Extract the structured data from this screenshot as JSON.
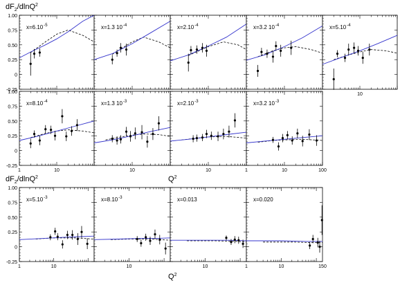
{
  "figure": {
    "ylabel_main": "dF₂/dlnQ²",
    "ylabel_main_parts": [
      "dF",
      "2",
      "/dlnQ",
      "2"
    ],
    "xlabel": "Q²",
    "xlabel_parts": [
      "Q",
      "2"
    ]
  },
  "colors": {
    "theory_solid": "#3333cc",
    "theory_dashed": "#000000",
    "points": "#000000",
    "frame": "#000000"
  },
  "chart_data": [
    {
      "type": "scatter",
      "x_label": "x=6.10",
      "x_exp": "-5",
      "y_ticks": [
        "-0.25",
        "0",
        "0.25",
        "0.50",
        "0.75",
        "1.00"
      ],
      "ylim": [
        -0.25,
        1.0
      ],
      "x_ticks": [],
      "xlim": [
        1,
        100
      ],
      "xscale": "log",
      "points": [
        {
          "x": 2,
          "y": 0.18,
          "err": 0.2
        },
        {
          "x": 2.5,
          "y": 0.35,
          "err": 0.08
        },
        {
          "x": 3.5,
          "y": 0.37,
          "err": 0.07
        }
      ],
      "solid": [
        [
          1,
          0.28
        ],
        [
          2,
          0.38
        ],
        [
          5,
          0.5
        ],
        [
          10,
          0.6
        ],
        [
          20,
          0.72
        ],
        [
          50,
          0.9
        ],
        [
          100,
          1.0
        ]
      ],
      "dashed": [
        [
          2,
          0.37
        ],
        [
          5,
          0.55
        ],
        [
          10,
          0.68
        ],
        [
          20,
          0.75
        ],
        [
          50,
          0.66
        ],
        [
          100,
          0.55
        ]
      ]
    },
    {
      "type": "scatter",
      "x_label": "x=1.3 10",
      "x_exp": "-4",
      "y_ticks": [],
      "ylim": [
        -0.25,
        1.0
      ],
      "x_ticks": [],
      "xlim": [
        1,
        100
      ],
      "xscale": "log",
      "points": [
        {
          "x": 3,
          "y": 0.25,
          "err": 0.08
        },
        {
          "x": 4,
          "y": 0.36,
          "err": 0.06
        },
        {
          "x": 5,
          "y": 0.45,
          "err": 0.08
        },
        {
          "x": 7,
          "y": 0.42,
          "err": 0.1
        }
      ],
      "solid": [
        [
          1,
          0.25
        ],
        [
          3,
          0.35
        ],
        [
          10,
          0.52
        ],
        [
          30,
          0.7
        ],
        [
          100,
          0.9
        ]
      ],
      "dashed": [
        [
          3,
          0.34
        ],
        [
          10,
          0.55
        ],
        [
          20,
          0.63
        ],
        [
          50,
          0.55
        ],
        [
          100,
          0.45
        ]
      ]
    },
    {
      "type": "scatter",
      "x_label": "x=2.10",
      "x_exp": "-4",
      "y_ticks": [],
      "ylim": [
        -0.25,
        1.0
      ],
      "x_ticks": [],
      "xlim": [
        1,
        100
      ],
      "xscale": "log",
      "points": [
        {
          "x": 3,
          "y": 0.2,
          "err": 0.15
        },
        {
          "x": 3.5,
          "y": 0.41,
          "err": 0.07
        },
        {
          "x": 5,
          "y": 0.42,
          "err": 0.07
        },
        {
          "x": 7,
          "y": 0.45,
          "err": 0.08
        },
        {
          "x": 9,
          "y": 0.4,
          "err": 0.1
        }
      ],
      "solid": [
        [
          1,
          0.23
        ],
        [
          3,
          0.33
        ],
        [
          10,
          0.48
        ],
        [
          30,
          0.63
        ],
        [
          100,
          0.85
        ]
      ],
      "dashed": [
        [
          3,
          0.32
        ],
        [
          10,
          0.47
        ],
        [
          25,
          0.55
        ],
        [
          60,
          0.5
        ],
        [
          100,
          0.42
        ]
      ]
    },
    {
      "type": "scatter",
      "x_label": "x=3.2 10",
      "x_exp": "-4",
      "y_ticks": [],
      "ylim": [
        -0.25,
        1.0
      ],
      "x_ticks": [],
      "xlim": [
        1,
        100
      ],
      "xscale": "log",
      "points": [
        {
          "x": 2,
          "y": 0.06,
          "err": 0.1
        },
        {
          "x": 2.5,
          "y": 0.38,
          "err": 0.07
        },
        {
          "x": 3.5,
          "y": 0.35,
          "err": 0.07
        },
        {
          "x": 5,
          "y": 0.3,
          "err": 0.1
        },
        {
          "x": 6,
          "y": 0.48,
          "err": 0.08
        },
        {
          "x": 8,
          "y": 0.4,
          "err": 0.1
        },
        {
          "x": 15,
          "y": 0.45,
          "err": 0.12
        }
      ],
      "solid": [
        [
          1,
          0.24
        ],
        [
          3,
          0.33
        ],
        [
          10,
          0.47
        ],
        [
          30,
          0.62
        ],
        [
          100,
          0.82
        ]
      ],
      "dashed": [
        [
          2,
          0.3
        ],
        [
          5,
          0.4
        ],
        [
          10,
          0.45
        ],
        [
          20,
          0.47
        ],
        [
          50,
          0.42
        ],
        [
          100,
          0.36
        ]
      ]
    },
    {
      "type": "scatter",
      "x_label": "x=5.10",
      "x_exp": "-4",
      "y_ticks": [],
      "ylim": [
        -0.25,
        1.0
      ],
      "x_ticks": [
        "10"
      ],
      "xlim": [
        1,
        100
      ],
      "xscale": "log",
      "points": [
        {
          "x": 2,
          "y": -0.08,
          "err": 0.18
        },
        {
          "x": 2.5,
          "y": 0.35,
          "err": 0.06
        },
        {
          "x": 4,
          "y": 0.28,
          "err": 0.07
        },
        {
          "x": 5,
          "y": 0.42,
          "err": 0.1
        },
        {
          "x": 7,
          "y": 0.45,
          "err": 0.09
        },
        {
          "x": 9,
          "y": 0.4,
          "err": 0.08
        },
        {
          "x": 12,
          "y": 0.28,
          "err": 0.1
        },
        {
          "x": 18,
          "y": 0.42,
          "err": 0.1
        }
      ],
      "solid": [
        [
          1,
          0.17
        ],
        [
          3,
          0.28
        ],
        [
          10,
          0.4
        ],
        [
          30,
          0.52
        ],
        [
          100,
          0.66
        ]
      ],
      "dashed": [
        [
          2,
          0.25
        ],
        [
          5,
          0.33
        ],
        [
          10,
          0.38
        ],
        [
          20,
          0.42
        ],
        [
          50,
          0.4
        ],
        [
          100,
          0.36
        ]
      ]
    },
    {
      "type": "scatter",
      "x_label": "x=8.10",
      "x_exp": "-4",
      "y_ticks": [
        "-0.25",
        "0",
        "0.25",
        "0.50",
        "0.75",
        "1.00"
      ],
      "ylim": [
        -0.25,
        1.0
      ],
      "x_ticks": [
        "1",
        "10"
      ],
      "xlim": [
        1,
        100
      ],
      "xscale": "log",
      "points": [
        {
          "x": 2,
          "y": 0.12,
          "err": 0.08
        },
        {
          "x": 2.5,
          "y": 0.28,
          "err": 0.06
        },
        {
          "x": 3.5,
          "y": 0.17,
          "err": 0.08
        },
        {
          "x": 5,
          "y": 0.36,
          "err": 0.07
        },
        {
          "x": 7,
          "y": 0.35,
          "err": 0.07
        },
        {
          "x": 9,
          "y": 0.25,
          "err": 0.08
        },
        {
          "x": 14,
          "y": 0.58,
          "err": 0.12
        },
        {
          "x": 18,
          "y": 0.24,
          "err": 0.08
        },
        {
          "x": 25,
          "y": 0.33,
          "err": 0.08
        },
        {
          "x": 35,
          "y": 0.43,
          "err": 0.1
        }
      ],
      "solid": [
        [
          1,
          0.17
        ],
        [
          3,
          0.24
        ],
        [
          10,
          0.33
        ],
        [
          30,
          0.41
        ],
        [
          100,
          0.5
        ]
      ],
      "dashed": [
        [
          2,
          0.22
        ],
        [
          5,
          0.29
        ],
        [
          10,
          0.33
        ],
        [
          20,
          0.35
        ],
        [
          50,
          0.33
        ],
        [
          100,
          0.3
        ]
      ]
    },
    {
      "type": "scatter",
      "x_label": "x=1.3 10",
      "x_exp": "-3",
      "y_ticks": [],
      "ylim": [
        -0.25,
        1.0
      ],
      "x_ticks": [
        "10"
      ],
      "xlim": [
        1,
        100
      ],
      "xscale": "log",
      "points": [
        {
          "x": 3,
          "y": 0.2,
          "err": 0.06
        },
        {
          "x": 4,
          "y": 0.17,
          "err": 0.07
        },
        {
          "x": 5,
          "y": 0.19,
          "err": 0.07
        },
        {
          "x": 7,
          "y": 0.32,
          "err": 0.08
        },
        {
          "x": 9,
          "y": 0.24,
          "err": 0.09
        },
        {
          "x": 12,
          "y": 0.29,
          "err": 0.1
        },
        {
          "x": 18,
          "y": 0.31,
          "err": 0.12
        },
        {
          "x": 25,
          "y": 0.15,
          "err": 0.1
        },
        {
          "x": 35,
          "y": 0.28,
          "err": 0.1
        },
        {
          "x": 50,
          "y": 0.46,
          "err": 0.12
        }
      ],
      "solid": [
        [
          1,
          0.13
        ],
        [
          3,
          0.18
        ],
        [
          10,
          0.25
        ],
        [
          30,
          0.32
        ],
        [
          100,
          0.39
        ]
      ],
      "dashed": [
        [
          2,
          0.18
        ],
        [
          5,
          0.23
        ],
        [
          10,
          0.26
        ],
        [
          20,
          0.28
        ],
        [
          50,
          0.27
        ],
        [
          100,
          0.24
        ]
      ]
    },
    {
      "type": "scatter",
      "x_label": "x=2.10",
      "x_exp": "-3",
      "y_ticks": [],
      "ylim": [
        -0.25,
        1.0
      ],
      "x_ticks": [
        "10"
      ],
      "xlim": [
        1,
        100
      ],
      "xscale": "log",
      "points": [
        {
          "x": 4,
          "y": 0.2,
          "err": 0.06
        },
        {
          "x": 5,
          "y": 0.21,
          "err": 0.06
        },
        {
          "x": 7,
          "y": 0.22,
          "err": 0.06
        },
        {
          "x": 9,
          "y": 0.28,
          "err": 0.07
        },
        {
          "x": 12,
          "y": 0.25,
          "err": 0.07
        },
        {
          "x": 18,
          "y": 0.24,
          "err": 0.08
        },
        {
          "x": 25,
          "y": 0.28,
          "err": 0.09
        },
        {
          "x": 35,
          "y": 0.32,
          "err": 0.1
        },
        {
          "x": 50,
          "y": 0.51,
          "err": 0.12
        }
      ],
      "solid": [
        [
          1,
          0.16
        ],
        [
          3,
          0.19
        ],
        [
          10,
          0.23
        ],
        [
          30,
          0.27
        ],
        [
          100,
          0.31
        ]
      ],
      "dashed": [
        [
          2,
          0.18
        ],
        [
          5,
          0.21
        ],
        [
          10,
          0.23
        ],
        [
          30,
          0.24
        ],
        [
          100,
          0.21
        ]
      ]
    },
    {
      "type": "scatter",
      "x_label": "x=3.2 10",
      "x_exp": "-3",
      "y_ticks": [],
      "ylim": [
        -0.25,
        1.0
      ],
      "x_ticks": [
        "1",
        "10",
        "100"
      ],
      "xlim": [
        1,
        100
      ],
      "xscale": "log",
      "points": [
        {
          "x": 5,
          "y": 0.18,
          "err": 0.05
        },
        {
          "x": 7,
          "y": 0.07,
          "err": 0.07
        },
        {
          "x": 9,
          "y": 0.21,
          "err": 0.07
        },
        {
          "x": 12,
          "y": 0.26,
          "err": 0.07
        },
        {
          "x": 16,
          "y": 0.17,
          "err": 0.07
        },
        {
          "x": 22,
          "y": 0.29,
          "err": 0.08
        },
        {
          "x": 30,
          "y": 0.16,
          "err": 0.09
        },
        {
          "x": 45,
          "y": 0.27,
          "err": 0.09
        },
        {
          "x": 70,
          "y": 0.17,
          "err": 0.09
        }
      ],
      "solid": [
        [
          1,
          0.13
        ],
        [
          3,
          0.16
        ],
        [
          10,
          0.19
        ],
        [
          30,
          0.22
        ],
        [
          100,
          0.25
        ]
      ],
      "dashed": [
        [
          2,
          0.14
        ],
        [
          5,
          0.17
        ],
        [
          10,
          0.18
        ],
        [
          30,
          0.19
        ],
        [
          100,
          0.17
        ]
      ]
    },
    {
      "type": "scatter",
      "x_label": "x=5.10",
      "x_exp": "-3",
      "y_ticks": [
        "-0.25",
        "0",
        "0.25",
        "0.50",
        "0.75",
        "1.00"
      ],
      "ylim": [
        -0.25,
        1.0
      ],
      "x_ticks": [
        "1",
        "10"
      ],
      "xlim": [
        1,
        150
      ],
      "xscale": "log",
      "points": [
        {
          "x": 8,
          "y": 0.16,
          "err": 0.05
        },
        {
          "x": 11,
          "y": 0.26,
          "err": 0.06
        },
        {
          "x": 13,
          "y": 0.17,
          "err": 0.06
        },
        {
          "x": 18,
          "y": 0.04,
          "err": 0.07
        },
        {
          "x": 25,
          "y": 0.2,
          "err": 0.07
        },
        {
          "x": 35,
          "y": 0.2,
          "err": 0.08
        },
        {
          "x": 50,
          "y": 0.13,
          "err": 0.1
        },
        {
          "x": 65,
          "y": 0.25,
          "err": 0.1
        },
        {
          "x": 95,
          "y": 0.05,
          "err": 0.09
        }
      ],
      "solid": [
        [
          1,
          0.12
        ],
        [
          5,
          0.14
        ],
        [
          20,
          0.16
        ],
        [
          60,
          0.17
        ],
        [
          150,
          0.18
        ]
      ],
      "dashed": [
        [
          3,
          0.13
        ],
        [
          10,
          0.15
        ],
        [
          40,
          0.15
        ],
        [
          150,
          0.13
        ]
      ]
    },
    {
      "type": "scatter",
      "x_label": "x=8.10",
      "x_exp": "-3",
      "y_ticks": [],
      "ylim": [
        -0.25,
        1.0
      ],
      "x_ticks": [
        "10"
      ],
      "xlim": [
        1,
        150
      ],
      "xscale": "log",
      "points": [
        {
          "x": 17,
          "y": 0.13,
          "err": 0.05
        },
        {
          "x": 22,
          "y": 0.06,
          "err": 0.06
        },
        {
          "x": 30,
          "y": 0.16,
          "err": 0.06
        },
        {
          "x": 40,
          "y": 0.1,
          "err": 0.07
        },
        {
          "x": 55,
          "y": 0.21,
          "err": 0.08
        },
        {
          "x": 75,
          "y": 0.12,
          "err": 0.08
        },
        {
          "x": 110,
          "y": -0.03,
          "err": 0.1
        }
      ],
      "solid": [
        [
          1,
          0.12
        ],
        [
          5,
          0.13
        ],
        [
          20,
          0.14
        ],
        [
          60,
          0.14
        ],
        [
          150,
          0.15
        ]
      ],
      "dashed": [
        [
          3,
          0.12
        ],
        [
          10,
          0.13
        ],
        [
          40,
          0.13
        ],
        [
          150,
          0.11
        ]
      ]
    },
    {
      "type": "scatter",
      "x_label": "x=0.013",
      "x_exp": "",
      "y_ticks": [],
      "ylim": [
        -0.25,
        1.0
      ],
      "x_ticks": [
        "10"
      ],
      "xlim": [
        1,
        150
      ],
      "xscale": "log",
      "points": [
        {
          "x": 40,
          "y": 0.15,
          "err": 0.04
        },
        {
          "x": 55,
          "y": 0.08,
          "err": 0.05
        },
        {
          "x": 70,
          "y": 0.12,
          "err": 0.06
        },
        {
          "x": 90,
          "y": 0.11,
          "err": 0.06
        },
        {
          "x": 120,
          "y": 0.05,
          "err": 0.07
        }
      ],
      "solid": [
        [
          1,
          0.11
        ],
        [
          10,
          0.11
        ],
        [
          50,
          0.11
        ],
        [
          150,
          0.1
        ]
      ],
      "dashed": [
        [
          3,
          0.1
        ],
        [
          20,
          0.1
        ],
        [
          80,
          0.09
        ],
        [
          150,
          0.08
        ]
      ]
    },
    {
      "type": "scatter",
      "x_label": "x=0.020",
      "x_exp": "",
      "y_ticks": [],
      "ylim": [
        -0.25,
        1.0
      ],
      "x_ticks": [
        "1",
        "10",
        "150"
      ],
      "xlim": [
        1,
        150
      ],
      "xscale": "log",
      "points": [
        {
          "x": 65,
          "y": 0.02,
          "err": 0.06
        },
        {
          "x": 80,
          "y": 0.13,
          "err": 0.07
        },
        {
          "x": 110,
          "y": 0.07,
          "err": 0.08
        },
        {
          "x": 125,
          "y": 0.0,
          "err": 0.1
        },
        {
          "x": 145,
          "y": 0.45,
          "err": 0.25
        }
      ],
      "solid": [
        [
          1,
          0.1
        ],
        [
          10,
          0.1
        ],
        [
          50,
          0.09
        ],
        [
          150,
          0.09
        ]
      ],
      "dashed": [
        [
          3,
          0.08
        ],
        [
          20,
          0.08
        ],
        [
          80,
          0.07
        ],
        [
          150,
          0.07
        ]
      ]
    }
  ]
}
